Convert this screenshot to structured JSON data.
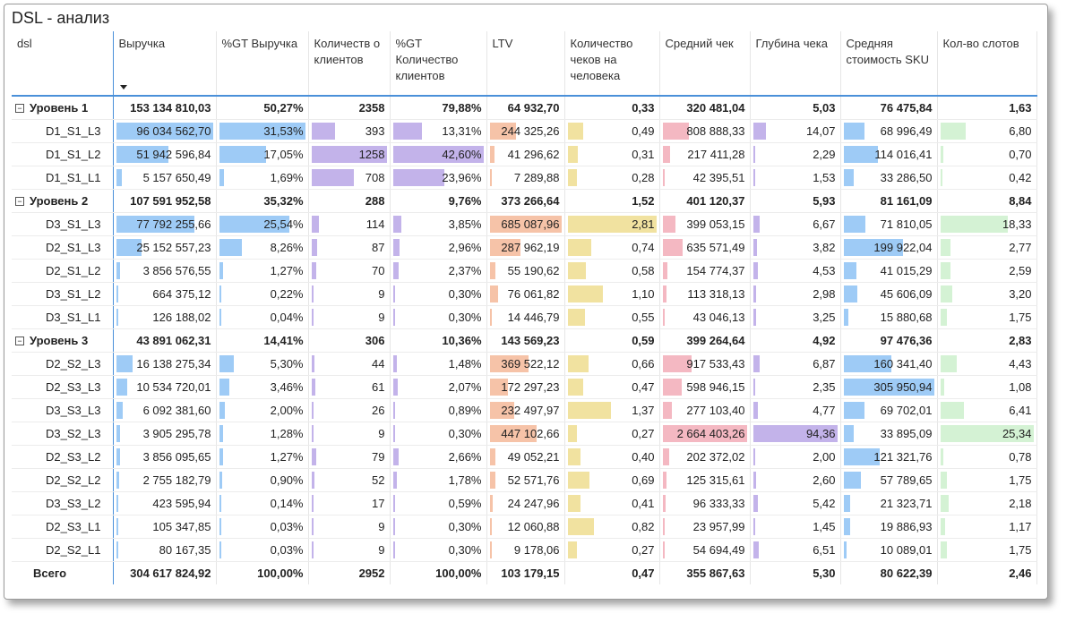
{
  "title": "DSL - анализ",
  "columns": [
    "dsl",
    "Выручка",
    "%GT Выручка",
    "Количеств о клиентов",
    "%GT Количество клиентов",
    "LTV",
    "Количество чеков на человека",
    "Средний чек",
    "Глубина чека",
    "Средняя стоимость SKU",
    "Кол-во слотов"
  ],
  "bar_colors": {
    "revenue": "#9ecbf6",
    "gt_revenue": "#9ecbf6",
    "clients": "#c3b3ea",
    "gt_clients": "#c3b3ea",
    "ltv": "#f6c3a8",
    "checks": "#f1e2a0",
    "avg_check": "#f4b8c2",
    "depth": "#c3b3ea",
    "sku": "#9ecbf6",
    "slots": "#d4f2d4"
  },
  "chart_data": {
    "type": "table",
    "title": "DSL - анализ",
    "columns": [
      "dsl",
      "Выручка",
      "%GT Выручка",
      "Количеств о клиентов",
      "%GT Количество клиентов",
      "LTV",
      "Количество чеков на человека",
      "Средний чек",
      "Глубина чека",
      "Средняя стоимость SKU",
      "Кол-во слотов"
    ],
    "bar_max": {
      "revenue": 96034562.7,
      "gt_revenue": 31.53,
      "clients": 1258,
      "gt_clients": 42.6,
      "ltv": 685087.96,
      "checks": 2.81,
      "avg_check": 2664403.26,
      "depth": 94.36,
      "sku": 305950.94,
      "slots": 25.34
    },
    "rows": [
      {
        "kind": "group",
        "label": "Уровень 1",
        "cells": [
          "153 134 810,03",
          "50,27%",
          "2358",
          "79,88%",
          "64 932,70",
          "0,33",
          "320 481,04",
          "5,03",
          "76 475,84",
          "1,63"
        ]
      },
      {
        "kind": "leaf",
        "label": "D1_S1_L3",
        "cells": [
          "96 034 562,70",
          "31,53%",
          "393",
          "13,31%",
          "244 325,26",
          "0,49",
          "808 888,33",
          "14,07",
          "68 996,49",
          "6,80"
        ],
        "nums": [
          96034562.7,
          31.53,
          393,
          13.31,
          244325.26,
          0.49,
          808888.33,
          14.07,
          68996.49,
          6.8
        ]
      },
      {
        "kind": "leaf",
        "label": "D1_S1_L2",
        "cells": [
          "51 942 596,84",
          "17,05%",
          "1258",
          "42,60%",
          "41 296,62",
          "0,31",
          "217 411,28",
          "2,29",
          "114 016,41",
          "0,70"
        ],
        "nums": [
          51942596.84,
          17.05,
          1258,
          42.6,
          41296.62,
          0.31,
          217411.28,
          2.29,
          114016.41,
          0.7
        ]
      },
      {
        "kind": "leaf",
        "label": "D1_S1_L1",
        "cells": [
          "5 157 650,49",
          "1,69%",
          "708",
          "23,96%",
          "7 289,88",
          "0,28",
          "42 395,51",
          "1,53",
          "33 286,50",
          "0,42"
        ],
        "nums": [
          5157650.49,
          1.69,
          708,
          23.96,
          7289.88,
          0.28,
          42395.51,
          1.53,
          33286.5,
          0.42
        ]
      },
      {
        "kind": "group",
        "label": "Уровень 2",
        "cells": [
          "107 591 952,58",
          "35,32%",
          "288",
          "9,76%",
          "373 266,64",
          "1,52",
          "401 120,37",
          "5,93",
          "81 161,09",
          "8,84"
        ]
      },
      {
        "kind": "leaf",
        "label": "D3_S1_L3",
        "cells": [
          "77 792 255,66",
          "25,54%",
          "114",
          "3,85%",
          "685 087,96",
          "2,81",
          "399 053,15",
          "6,67",
          "71 810,05",
          "18,33"
        ],
        "nums": [
          77792255.66,
          25.54,
          114,
          3.85,
          685087.96,
          2.81,
          399053.15,
          6.67,
          71810.05,
          18.33
        ]
      },
      {
        "kind": "leaf",
        "label": "D2_S1_L3",
        "cells": [
          "25 152 557,23",
          "8,26%",
          "87",
          "2,96%",
          "287 962,19",
          "0,74",
          "635 571,49",
          "3,82",
          "199 922,04",
          "2,77"
        ],
        "nums": [
          25152557.23,
          8.26,
          87,
          2.96,
          287962.19,
          0.74,
          635571.49,
          3.82,
          199922.04,
          2.77
        ]
      },
      {
        "kind": "leaf",
        "label": "D2_S1_L2",
        "cells": [
          "3 856 576,55",
          "1,27%",
          "70",
          "2,37%",
          "55 190,62",
          "0,58",
          "154 774,37",
          "4,53",
          "41 015,29",
          "2,59"
        ],
        "nums": [
          3856576.55,
          1.27,
          70,
          2.37,
          55190.62,
          0.58,
          154774.37,
          4.53,
          41015.29,
          2.59
        ]
      },
      {
        "kind": "leaf",
        "label": "D3_S1_L2",
        "cells": [
          "664 375,12",
          "0,22%",
          "9",
          "0,30%",
          "76 061,82",
          "1,10",
          "113 318,13",
          "2,98",
          "45 606,09",
          "3,20"
        ],
        "nums": [
          664375.12,
          0.22,
          9,
          0.3,
          76061.82,
          1.1,
          113318.13,
          2.98,
          45606.09,
          3.2
        ]
      },
      {
        "kind": "leaf",
        "label": "D3_S1_L1",
        "cells": [
          "126 188,02",
          "0,04%",
          "9",
          "0,30%",
          "14 446,79",
          "0,55",
          "43 046,13",
          "3,25",
          "15 880,68",
          "1,75"
        ],
        "nums": [
          126188.02,
          0.04,
          9,
          0.3,
          14446.79,
          0.55,
          43046.13,
          3.25,
          15880.68,
          1.75
        ]
      },
      {
        "kind": "group",
        "label": "Уровень 3",
        "cells": [
          "43 891 062,31",
          "14,41%",
          "306",
          "10,36%",
          "143 569,23",
          "0,59",
          "399 264,64",
          "4,92",
          "97 476,36",
          "2,83"
        ]
      },
      {
        "kind": "leaf",
        "label": "D2_S2_L3",
        "cells": [
          "16 138 275,34",
          "5,30%",
          "44",
          "1,48%",
          "369 522,12",
          "0,66",
          "917 533,43",
          "6,87",
          "160 341,40",
          "4,43"
        ],
        "nums": [
          16138275.34,
          5.3,
          44,
          1.48,
          369522.12,
          0.66,
          917533.43,
          6.87,
          160341.4,
          4.43
        ]
      },
      {
        "kind": "leaf",
        "label": "D2_S3_L3",
        "cells": [
          "10 534 720,01",
          "3,46%",
          "61",
          "2,07%",
          "172 297,23",
          "0,47",
          "598 946,15",
          "2,35",
          "305 950,94",
          "1,08"
        ],
        "nums": [
          10534720.01,
          3.46,
          61,
          2.07,
          172297.23,
          0.47,
          598946.15,
          2.35,
          305950.94,
          1.08
        ]
      },
      {
        "kind": "leaf",
        "label": "D3_S3_L3",
        "cells": [
          "6 092 381,60",
          "2,00%",
          "26",
          "0,89%",
          "232 497,97",
          "1,37",
          "277 103,40",
          "4,77",
          "69 702,01",
          "6,41"
        ],
        "nums": [
          6092381.6,
          2.0,
          26,
          0.89,
          232497.97,
          1.37,
          277103.4,
          4.77,
          69702.01,
          6.41
        ]
      },
      {
        "kind": "leaf",
        "label": "D3_S2_L3",
        "cells": [
          "3 905 295,78",
          "1,28%",
          "9",
          "0,30%",
          "447 102,66",
          "0,27",
          "2 664 403,26",
          "94,36",
          "33 895,09",
          "25,34"
        ],
        "nums": [
          3905295.78,
          1.28,
          9,
          0.3,
          447102.66,
          0.27,
          2664403.26,
          94.36,
          33895.09,
          25.34
        ]
      },
      {
        "kind": "leaf",
        "label": "D2_S3_L2",
        "cells": [
          "3 856 095,65",
          "1,27%",
          "79",
          "2,66%",
          "49 052,21",
          "0,40",
          "202 372,02",
          "2,00",
          "121 321,76",
          "0,78"
        ],
        "nums": [
          3856095.65,
          1.27,
          79,
          2.66,
          49052.21,
          0.4,
          202372.02,
          2.0,
          121321.76,
          0.78
        ]
      },
      {
        "kind": "leaf",
        "label": "D2_S2_L2",
        "cells": [
          "2 755 182,79",
          "0,90%",
          "52",
          "1,78%",
          "52 571,76",
          "0,69",
          "125 315,61",
          "2,60",
          "57 789,65",
          "1,75"
        ],
        "nums": [
          2755182.79,
          0.9,
          52,
          1.78,
          52571.76,
          0.69,
          125315.61,
          2.6,
          57789.65,
          1.75
        ]
      },
      {
        "kind": "leaf",
        "label": "D3_S3_L2",
        "cells": [
          "423 595,94",
          "0,14%",
          "17",
          "0,59%",
          "24 247,96",
          "0,41",
          "96 333,33",
          "5,42",
          "21 323,71",
          "2,18"
        ],
        "nums": [
          423595.94,
          0.14,
          17,
          0.59,
          24247.96,
          0.41,
          96333.33,
          5.42,
          21323.71,
          2.18
        ]
      },
      {
        "kind": "leaf",
        "label": "D2_S3_L1",
        "cells": [
          "105 347,85",
          "0,03%",
          "9",
          "0,30%",
          "12 060,88",
          "0,82",
          "23 957,99",
          "1,45",
          "19 886,93",
          "1,17"
        ],
        "nums": [
          105347.85,
          0.03,
          9,
          0.3,
          12060.88,
          0.82,
          23957.99,
          1.45,
          19886.93,
          1.17
        ]
      },
      {
        "kind": "leaf",
        "label": "D2_S2_L1",
        "cells": [
          "80 167,35",
          "0,03%",
          "9",
          "0,30%",
          "9 178,06",
          "0,27",
          "54 694,49",
          "6,51",
          "10 089,01",
          "1,75"
        ],
        "nums": [
          80167.35,
          0.03,
          9,
          0.3,
          9178.06,
          0.27,
          54694.49,
          6.51,
          10089.01,
          1.75
        ]
      },
      {
        "kind": "total",
        "label": "Всего",
        "cells": [
          "304 617 824,92",
          "100,00%",
          "2952",
          "100,00%",
          "103 179,15",
          "0,47",
          "355 867,63",
          "5,30",
          "80 622,39",
          "2,46"
        ]
      }
    ]
  }
}
